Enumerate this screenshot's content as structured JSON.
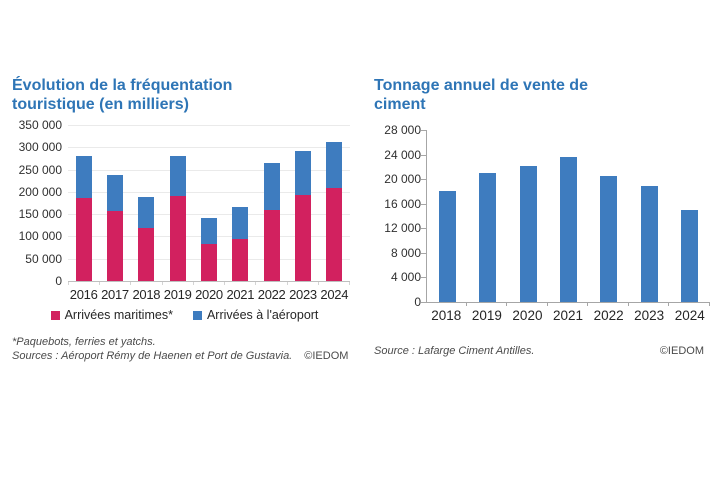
{
  "accent_color": "#2E75B6",
  "chart_data": [
    {
      "type": "stacked-bar",
      "title": "Évolution de la fréquentation touristique (en milliers)",
      "categories": [
        "2016",
        "2017",
        "2018",
        "2019",
        "2020",
        "2021",
        "2022",
        "2023",
        "2024"
      ],
      "series": [
        {
          "name": "Arrivées maritimes*",
          "color": "#D2215F",
          "values": [
            186000,
            156000,
            118000,
            190000,
            82000,
            94000,
            160000,
            193000,
            209000
          ]
        },
        {
          "name": "Arrivées à l'aéroport",
          "color": "#3E7CBF",
          "values": [
            94000,
            82000,
            70000,
            91000,
            59000,
            71000,
            105000,
            98000,
            102000
          ]
        }
      ],
      "totals": [
        280000,
        238000,
        188000,
        281000,
        141000,
        165000,
        265000,
        291000,
        311000
      ],
      "ylim": [
        0,
        350000
      ],
      "ytick_step": 50000,
      "ytick_labels": [
        "350 000",
        "300 000",
        "250 000",
        "200 000",
        "150 000",
        "100 000",
        "50 000",
        "0"
      ],
      "grid": true,
      "yaxis_line": false,
      "legend_position": "bottom",
      "footnote": "*Paquebots, ferries et yatchs.",
      "source": "Sources : Aéroport Rémy de Haenen et Port de Gustavia.",
      "copyright": "©IEDOM"
    },
    {
      "type": "bar",
      "title": "Tonnage annuel de vente de ciment",
      "categories": [
        "2018",
        "2019",
        "2020",
        "2021",
        "2022",
        "2023",
        "2024"
      ],
      "series": [
        {
          "name": "Tonnage",
          "color": "#3E7CBF",
          "values": [
            18000,
            21000,
            22100,
            23600,
            20500,
            18900,
            15000
          ]
        }
      ],
      "ylim": [
        0,
        28000
      ],
      "ytick_step": 4000,
      "ytick_labels": [
        "28 000",
        "24 000",
        "20 000",
        "16 000",
        "12 000",
        "8 000",
        "4 000",
        "0"
      ],
      "grid": false,
      "yaxis_line": true,
      "legend_position": "none",
      "source": "Source : Lafarge Ciment Antilles.",
      "copyright": "©IEDOM"
    }
  ]
}
